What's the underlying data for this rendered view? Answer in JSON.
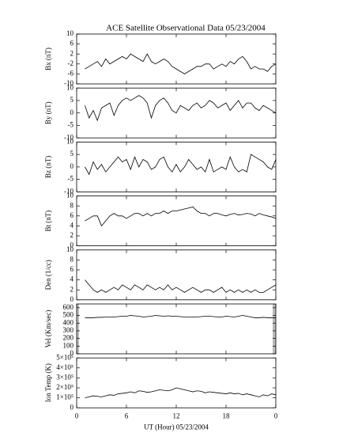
{
  "chart_data": [
    {
      "type": "line",
      "title": "ACE Satellite Observational Data   05/23/2004",
      "ylabel": "Bx (nT)",
      "color": "#000000",
      "xlim": [
        0,
        24
      ],
      "ylim": [
        -10,
        10
      ],
      "yticks": [
        -10,
        -6,
        -2,
        2,
        6,
        10
      ],
      "x": [
        1,
        1.5,
        2,
        2.5,
        3,
        3.5,
        4,
        4.5,
        5,
        5.5,
        6,
        6.5,
        7,
        7.5,
        8,
        8.5,
        9,
        9.5,
        10,
        10.5,
        11,
        11.5,
        12,
        12.5,
        13,
        13.5,
        14,
        14.5,
        15,
        15.5,
        16,
        16.5,
        17,
        17.5,
        18,
        18.5,
        19,
        19.5,
        20,
        20.5,
        21,
        21.5,
        22,
        22.5,
        23,
        23.5,
        24
      ],
      "values": [
        -4,
        -3,
        -2,
        -1,
        -3,
        0,
        -2,
        -1,
        0,
        1,
        0,
        2,
        1,
        0,
        -1,
        2,
        -1,
        -2,
        -1,
        0,
        -1,
        -3,
        -4,
        -5,
        -6,
        -5,
        -4,
        -3,
        -3,
        -2,
        -2,
        -4,
        -3,
        -2,
        -3,
        -1,
        -2,
        0,
        1,
        -1,
        -4,
        -3,
        -4,
        -4,
        -5,
        -3,
        -2
      ]
    },
    {
      "type": "line",
      "ylabel": "By (nT)",
      "color": "#000000",
      "xlim": [
        0,
        24
      ],
      "ylim": [
        -10,
        10
      ],
      "yticks": [
        -10,
        -5,
        0,
        5,
        10
      ],
      "x": [
        1,
        1.5,
        2,
        2.5,
        3,
        3.5,
        4,
        4.5,
        5,
        5.5,
        6,
        6.5,
        7,
        7.5,
        8,
        8.5,
        9,
        9.5,
        10,
        10.5,
        11,
        11.5,
        12,
        12.5,
        13,
        13.5,
        14,
        14.5,
        15,
        15.5,
        16,
        16.5,
        17,
        17.5,
        18,
        18.5,
        19,
        19.5,
        20,
        20.5,
        21,
        21.5,
        22,
        22.5,
        23,
        23.5,
        24
      ],
      "values": [
        3,
        -2,
        1,
        -3,
        2,
        3,
        4,
        -1,
        3,
        5,
        6,
        5,
        6,
        7,
        6,
        4,
        -2,
        3,
        5,
        6,
        4,
        1,
        0,
        3,
        2,
        1,
        3,
        4,
        2,
        3,
        5,
        4,
        2,
        3,
        4,
        1,
        3,
        5,
        2,
        4,
        4,
        2,
        1,
        3,
        2,
        1,
        0
      ]
    },
    {
      "type": "line",
      "ylabel": "Bz (nT)",
      "color": "#000000",
      "xlim": [
        0,
        24
      ],
      "ylim": [
        -10,
        10
      ],
      "yticks": [
        -10,
        -5,
        0,
        5,
        10
      ],
      "x": [
        1,
        1.5,
        2,
        2.5,
        3,
        3.5,
        4,
        4.5,
        5,
        5.5,
        6,
        6.5,
        7,
        7.5,
        8,
        8.5,
        9,
        9.5,
        10,
        10.5,
        11,
        11.5,
        12,
        12.5,
        13,
        13.5,
        14,
        14.5,
        15,
        15.5,
        16,
        16.5,
        17,
        17.5,
        18,
        18.5,
        19,
        19.5,
        20,
        20.5,
        21,
        21.5,
        22,
        22.5,
        23,
        23.5,
        24
      ],
      "values": [
        0,
        -3,
        2,
        -1,
        1,
        -2,
        0,
        2,
        4,
        2,
        3,
        -1,
        4,
        0,
        3,
        2,
        -1,
        0,
        3,
        4,
        0,
        -2,
        1,
        -2,
        0,
        3,
        1,
        -1,
        0,
        -2,
        3,
        -2,
        -1,
        0,
        -1,
        4,
        0,
        -2,
        -1,
        -2,
        5,
        4,
        3,
        2,
        0,
        -1,
        3
      ]
    },
    {
      "type": "line",
      "ylabel": "Bt (nT)",
      "color": "#000000",
      "xlim": [
        0,
        24
      ],
      "ylim": [
        0,
        10
      ],
      "yticks": [
        0,
        2,
        4,
        6,
        8,
        10
      ],
      "x": [
        1,
        1.5,
        2,
        2.5,
        3,
        3.5,
        4,
        4.5,
        5,
        5.5,
        6,
        6.5,
        7,
        7.5,
        8,
        8.5,
        9,
        9.5,
        10,
        10.5,
        11,
        11.5,
        12,
        12.5,
        13,
        13.5,
        14,
        14.5,
        15,
        15.5,
        16,
        16.5,
        17,
        17.5,
        18,
        18.5,
        19,
        19.5,
        20,
        20.5,
        21,
        21.5,
        22,
        22.5,
        23,
        23.5,
        24
      ],
      "values": [
        5,
        5.5,
        6,
        6,
        4,
        5,
        6,
        6.5,
        6,
        6,
        5.5,
        6,
        6.5,
        6.5,
        6,
        6.5,
        6,
        6.5,
        6.5,
        7,
        6.5,
        7,
        7,
        7.2,
        7.4,
        7.6,
        7.8,
        7,
        6.5,
        6.5,
        6,
        6.5,
        6.5,
        6.2,
        6,
        6.3,
        6.5,
        6.2,
        6.3,
        6.5,
        6.4,
        6,
        6.5,
        6.2,
        6,
        5.8,
        5.5
      ]
    },
    {
      "type": "line",
      "ylabel": "Den (1/cc)",
      "color": "#000000",
      "xlim": [
        0,
        24
      ],
      "ylim": [
        0,
        10
      ],
      "yticks": [
        0,
        2,
        4,
        6,
        8,
        10
      ],
      "x": [
        1,
        1.5,
        2,
        2.5,
        3,
        3.5,
        4,
        4.5,
        5,
        5.5,
        6,
        6.5,
        7,
        7.5,
        8,
        8.5,
        9,
        9.5,
        10,
        10.5,
        11,
        11.5,
        12,
        12.5,
        13,
        13.5,
        14,
        14.5,
        15,
        15.5,
        16,
        16.5,
        17,
        17.5,
        18,
        18.5,
        19,
        19.5,
        20,
        20.5,
        21,
        21.5,
        22,
        22.5,
        23,
        23.5,
        24
      ],
      "values": [
        4,
        3,
        2,
        1.5,
        2,
        1.5,
        2,
        2.5,
        2,
        3,
        2.5,
        2,
        3,
        2.5,
        2,
        3,
        2.5,
        2,
        2.5,
        2,
        3,
        2,
        2.5,
        2,
        1.5,
        2,
        2.5,
        2,
        1.5,
        2,
        2,
        1.5,
        2,
        2.5,
        1.5,
        2,
        1.5,
        2,
        1.5,
        2,
        1.5,
        2,
        1.5,
        1.5,
        2,
        2.5,
        3
      ]
    },
    {
      "type": "line",
      "ylabel": "Vel (Km/sec)",
      "color": "#000000",
      "xlim": [
        0,
        24
      ],
      "ylim": [
        0,
        650
      ],
      "yticks": [
        0,
        100,
        200,
        300,
        400,
        500,
        600
      ],
      "x": [
        1,
        1.5,
        2,
        2.5,
        3,
        3.5,
        4,
        4.5,
        5,
        5.5,
        6,
        6.5,
        7,
        7.5,
        8,
        8.5,
        9,
        9.5,
        10,
        10.5,
        11,
        11.5,
        12,
        12.5,
        13,
        13.5,
        14,
        14.5,
        15,
        15.5,
        16,
        16.5,
        17,
        17.5,
        18,
        18.5,
        19,
        19.5,
        20,
        20.5,
        21,
        21.5,
        22,
        22.5,
        23,
        23.5,
        24
      ],
      "values": [
        470,
        470,
        470,
        475,
        475,
        480,
        480,
        480,
        485,
        490,
        490,
        500,
        495,
        490,
        480,
        485,
        490,
        500,
        495,
        490,
        495,
        490,
        490,
        485,
        480,
        480,
        480,
        480,
        485,
        490,
        490,
        485,
        480,
        480,
        490,
        485,
        480,
        490,
        500,
        490,
        480,
        470,
        470,
        475,
        470,
        470,
        470
      ]
    },
    {
      "type": "line",
      "ylabel": "Ion Temp (K)",
      "xlabel": "UT (Hour)   05/23/2004",
      "color": "#000000",
      "xlim": [
        0,
        24
      ],
      "ylim": [
        0,
        500000
      ],
      "yticks": [
        0,
        {
          "value": 100000,
          "label": "1×10⁵"
        },
        {
          "value": 200000,
          "label": "2×10⁵"
        },
        {
          "value": 300000,
          "label": "3×10⁵"
        },
        {
          "value": 400000,
          "label": "4×10⁵"
        },
        {
          "value": 500000,
          "label": "5×10⁵"
        }
      ],
      "xticks": [
        0,
        6,
        12,
        18,
        {
          "value": 24,
          "label": "0"
        }
      ],
      "x": [
        1,
        1.5,
        2,
        2.5,
        3,
        3.5,
        4,
        4.5,
        5,
        5.5,
        6,
        6.5,
        7,
        7.5,
        8,
        8.5,
        9,
        9.5,
        10,
        10.5,
        11,
        11.5,
        12,
        12.5,
        13,
        13.5,
        14,
        14.5,
        15,
        15.5,
        16,
        16.5,
        17,
        17.5,
        18,
        18.5,
        19,
        19.5,
        20,
        20.5,
        21,
        21.5,
        22,
        22.5,
        23,
        23.5,
        24
      ],
      "values": [
        100000,
        110000,
        120000,
        115000,
        110000,
        120000,
        130000,
        125000,
        140000,
        145000,
        150000,
        160000,
        150000,
        170000,
        165000,
        155000,
        160000,
        170000,
        180000,
        175000,
        170000,
        180000,
        200000,
        190000,
        180000,
        170000,
        160000,
        170000,
        165000,
        150000,
        160000,
        155000,
        150000,
        145000,
        140000,
        150000,
        140000,
        145000,
        130000,
        140000,
        130000,
        120000,
        110000,
        130000,
        120000,
        140000,
        130000
      ]
    }
  ]
}
